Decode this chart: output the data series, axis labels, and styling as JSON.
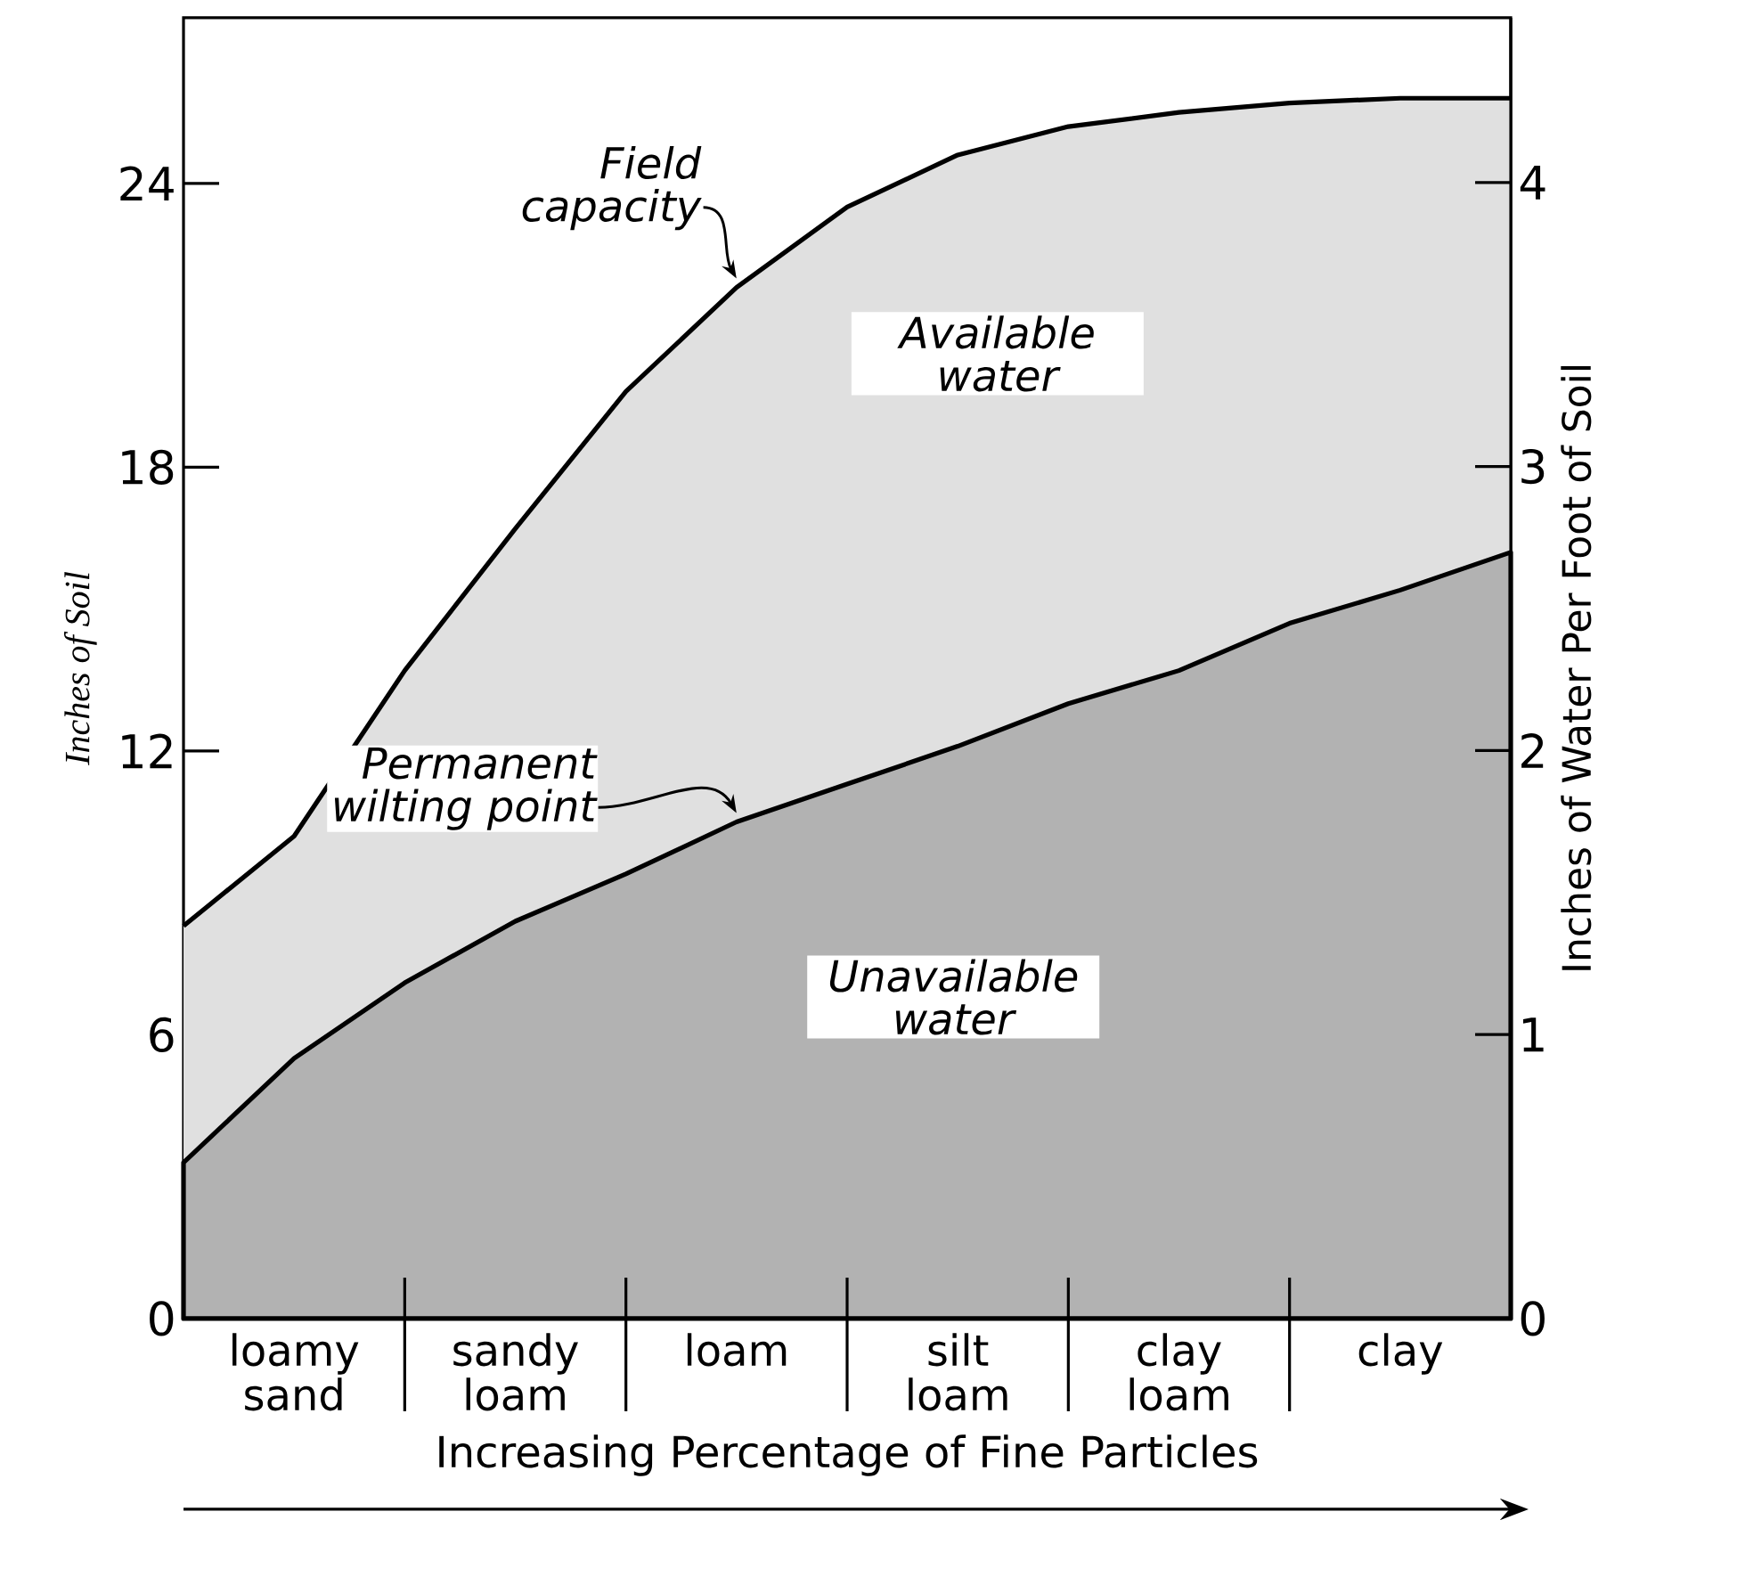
{
  "chart_data": {
    "type": "area",
    "xlabel": "Increasing Percentage of Fine Particles",
    "ylabel": "Inches of Soil",
    "y2label": "Inches of Water Per Foot of Soil",
    "categories": [
      null,
      "loamy sand",
      null,
      "sandy loam",
      null,
      "loam",
      null,
      "silt loam",
      null,
      "clay loam",
      null,
      "clay",
      null
    ],
    "series": [
      {
        "name": "Field capacity",
        "color": "#000000",
        "values": [
          8.3,
          10.2,
          13.7,
          16.7,
          19.6,
          21.8,
          23.5,
          24.6,
          25.2,
          25.5,
          25.7,
          25.8,
          25.8
        ]
      },
      {
        "name": "Permanent wilting point",
        "color": "#000000",
        "values": [
          3.3,
          5.5,
          7.1,
          8.4,
          9.4,
          10.5,
          11.3,
          12.1,
          13.0,
          13.7,
          14.7,
          15.4,
          16.2
        ]
      }
    ],
    "ylim": [
      0,
      27.5
    ],
    "yticks": [
      0,
      6,
      12,
      18,
      24
    ],
    "y2lim": [
      0,
      4.58
    ],
    "y2ticks": [
      0,
      1,
      2,
      3,
      4
    ],
    "annotations": [
      "Available water",
      "Unavailable water"
    ]
  }
}
